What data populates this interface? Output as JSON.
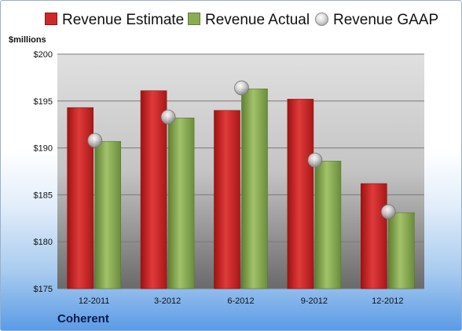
{
  "company": "Coherent",
  "chart_data": {
    "type": "bar",
    "title": "",
    "ylabel": "$millions",
    "xlabel": "",
    "ylim": [
      175,
      200
    ],
    "yticks": [
      "$175",
      "$180",
      "$185",
      "$190",
      "$195",
      "$200"
    ],
    "ytick_values": [
      175,
      180,
      185,
      190,
      195,
      200
    ],
    "categories": [
      "12-2011",
      "3-2012",
      "6-2012",
      "9-2012",
      "12-2012"
    ],
    "legend_position": "top",
    "grid": true,
    "series": [
      {
        "name": "Revenue Estimate",
        "kind": "bar",
        "color": "#cc2a2a",
        "values": [
          194.3,
          196.1,
          194.0,
          195.2,
          186.2
        ]
      },
      {
        "name": "Revenue Actual",
        "kind": "bar",
        "color": "#8aac55",
        "values": [
          190.7,
          193.2,
          196.3,
          188.6,
          183.1
        ]
      },
      {
        "name": "Revenue GAAP",
        "kind": "marker",
        "color": "#c8c8c8",
        "values": [
          190.8,
          193.3,
          196.4,
          188.7,
          183.2
        ]
      }
    ]
  }
}
